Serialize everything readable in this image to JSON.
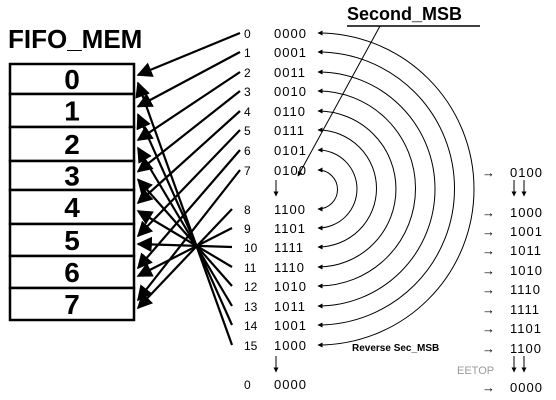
{
  "title": "FIFO_MEM",
  "callout_top": "Second_MSB",
  "callout_bottom": "Reverse Sec_MSB",
  "memory_slots": [
    "0",
    "1",
    "2",
    "3",
    "4",
    "5",
    "6",
    "7"
  ],
  "sequence": [
    {
      "index": "0",
      "code": "0000"
    },
    {
      "index": "1",
      "code": "0001"
    },
    {
      "index": "2",
      "code": "0011"
    },
    {
      "index": "3",
      "code": "0010"
    },
    {
      "index": "4",
      "code": "0110"
    },
    {
      "index": "5",
      "code": "0111"
    },
    {
      "index": "6",
      "code": "0101"
    },
    {
      "index": "7",
      "code": "0100"
    },
    {
      "index": "8",
      "code": "1100"
    },
    {
      "index": "9",
      "code": "1101"
    },
    {
      "index": "10",
      "code": "1111"
    },
    {
      "index": "11",
      "code": "1110"
    },
    {
      "index": "12",
      "code": "1010"
    },
    {
      "index": "13",
      "code": "1011"
    },
    {
      "index": "14",
      "code": "1001"
    },
    {
      "index": "15",
      "code": "1000"
    }
  ],
  "wrap_index": "0",
  "wrap_code": "0000",
  "right_column": [
    "0100",
    "1000",
    "1001",
    "1011",
    "1010",
    "1110",
    "1111",
    "1101",
    "1100",
    "0000"
  ],
  "watermark": "EETOP",
  "arrow_glyph": "→",
  "down_arrow_glyph": "↓"
}
